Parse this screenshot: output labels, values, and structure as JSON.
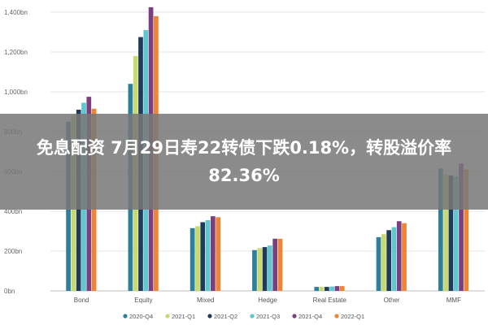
{
  "headline": "免息配资 7月29日寿22转债下跌0.18%，转股溢价率82.36%",
  "colors": {
    "overlay": "#7a7a7a",
    "grid": "#e4e4e4",
    "axis": "#bfbfbf"
  },
  "chart_data": {
    "type": "bar",
    "title": "",
    "xlabel": "",
    "ylabel": "",
    "ylim": [
      0,
      1400
    ],
    "yticks": [
      {
        "value": 0,
        "label": "0bn"
      },
      {
        "value": 200,
        "label": "200bn"
      },
      {
        "value": 400,
        "label": "400bn"
      },
      {
        "value": 600,
        "label": "600bn"
      },
      {
        "value": 800,
        "label": "800bn"
      },
      {
        "value": 1000,
        "label": "1,000bn"
      },
      {
        "value": 1200,
        "label": "1,200bn"
      },
      {
        "value": 1400,
        "label": "1,400bn"
      }
    ],
    "grid": true,
    "legend_position": "bottom",
    "categories": [
      "Bond",
      "Equity",
      "Mixed",
      "Hedge",
      "Real Estate",
      "Other",
      "MMF"
    ],
    "series": [
      {
        "name": "2020-Q4",
        "color": "#2e7f9a",
        "values": [
          850,
          1040,
          315,
          205,
          20,
          270,
          615
        ]
      },
      {
        "name": "2021-Q1",
        "color": "#c8d96f",
        "values": [
          885,
          1180,
          325,
          215,
          20,
          285,
          585
        ]
      },
      {
        "name": "2021-Q2",
        "color": "#1f3b5a",
        "values": [
          910,
          1275,
          345,
          220,
          20,
          305,
          580
        ]
      },
      {
        "name": "2021-Q3",
        "color": "#5fc7cf",
        "values": [
          945,
          1310,
          355,
          228,
          22,
          320,
          575
        ]
      },
      {
        "name": "2021-Q4",
        "color": "#7b3f7f",
        "values": [
          975,
          1425,
          375,
          262,
          24,
          350,
          640
        ]
      },
      {
        "name": "2022-Q1",
        "color": "#ee8434",
        "values": [
          915,
          1380,
          370,
          262,
          24,
          340,
          610
        ]
      }
    ]
  }
}
